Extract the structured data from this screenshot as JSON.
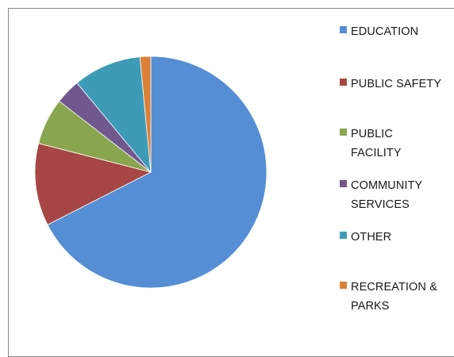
{
  "chart_data": {
    "type": "pie",
    "title": "",
    "categories": [
      "EDUCATION",
      "PUBLIC SAFETY",
      "PUBLIC\nFACILITY",
      "COMMUNITY\nSERVICES",
      "OTHER",
      "RECREATION &\nPARKS"
    ],
    "values": [
      67.5,
      11.5,
      6.5,
      3.5,
      9.5,
      1.5
    ],
    "colors": [
      "#558ED5",
      "#A74644",
      "#89A54E",
      "#70588F",
      "#3E9BB8",
      "#DA8137"
    ],
    "start_angle_deg": 0,
    "direction": "clockwise",
    "legend_position": "right",
    "grid": false
  }
}
